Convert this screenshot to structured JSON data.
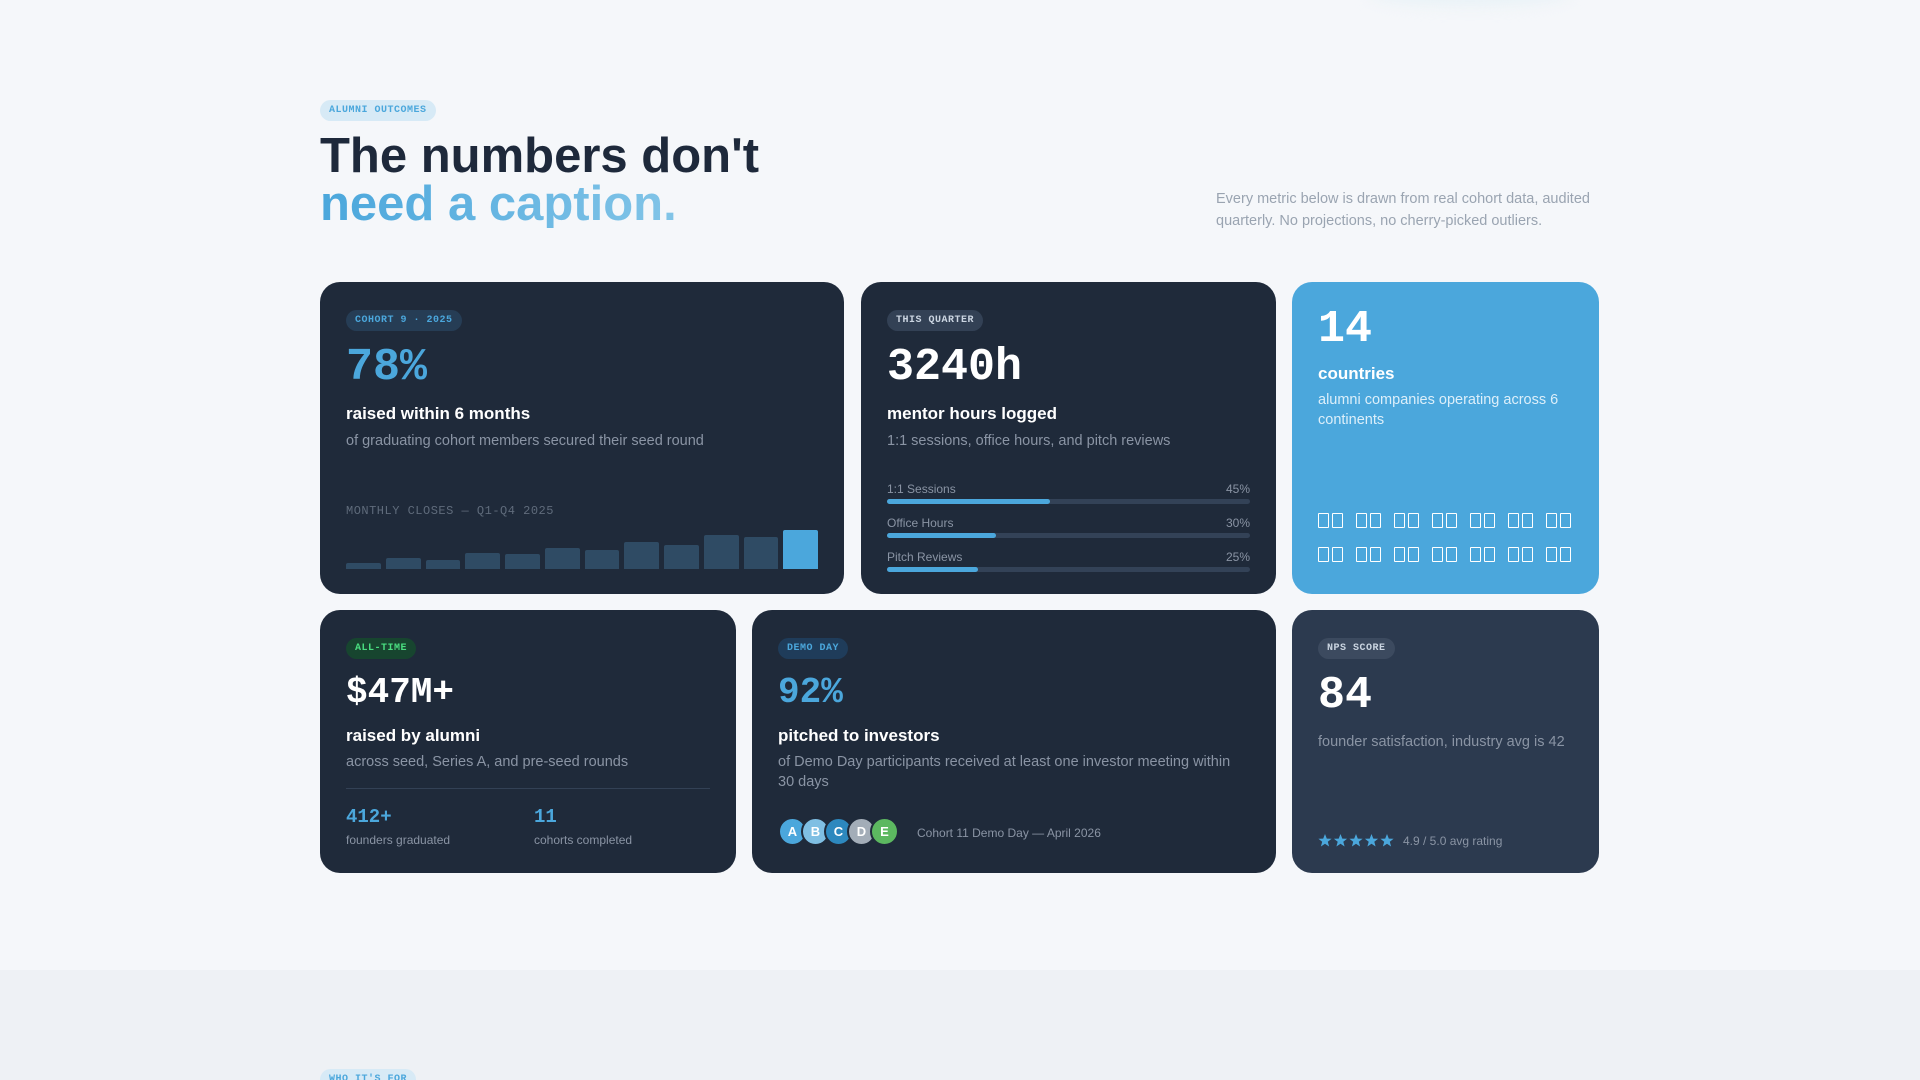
{
  "header": {
    "eyebrow": "ALUMNI OUTCOMES",
    "title_line1": "The numbers don't",
    "title_line2": "need a caption.",
    "description": "Every metric below is drawn from real cohort data, audited quarterly. No projections, no cherry-picked outliers."
  },
  "cards": {
    "cohort": {
      "badge": "COHORT 9 · 2025",
      "stat": "78%",
      "title": "raised within 6 months",
      "text": "of graduating cohort members secured their seed round",
      "chart_label": "MONTHLY CLOSES — Q1-Q4 2025",
      "bars": [
        5,
        9,
        7,
        13,
        12,
        17,
        16,
        22,
        20,
        28,
        26,
        32
      ]
    },
    "quarter": {
      "badge": "THIS QUARTER",
      "stat": "3240h",
      "title": "mentor hours logged",
      "text": "1:1 sessions, office hours, and pitch reviews",
      "breakdown": [
        {
          "name": "1:1 Sessions",
          "value": 45,
          "label": "45%"
        },
        {
          "name": "Office Hours",
          "value": 30,
          "label": "30%"
        },
        {
          "name": "Pitch Reviews",
          "value": 25,
          "label": "25%"
        }
      ]
    },
    "countries": {
      "stat": "14",
      "title": "countries",
      "text": "alumni companies operating across 6 continents"
    },
    "alltime": {
      "badge": "ALL-TIME",
      "stat": "$47M+",
      "title": "raised by alumni",
      "text": "across seed, Series A, and pre-seed rounds",
      "substats": [
        {
          "value": "412+",
          "label": "founders graduated"
        },
        {
          "value": "11",
          "label": "cohorts completed"
        }
      ]
    },
    "demoday": {
      "badge": "DEMO DAY",
      "stat": "92%",
      "title": "pitched to investors",
      "text": "of Demo Day participants received at least one investor meeting within 30 days",
      "avatars": [
        "A",
        "B",
        "C",
        "D",
        "E"
      ],
      "caption": "Cohort 11 Demo Day — April 2026"
    },
    "nps": {
      "badge": "NPS SCORE",
      "stat": "84",
      "text": "founder satisfaction, industry avg is 42",
      "rating": "4.9 / 5.0 avg rating"
    }
  },
  "next_section": {
    "eyebrow": "WHO IT'S FOR"
  }
}
